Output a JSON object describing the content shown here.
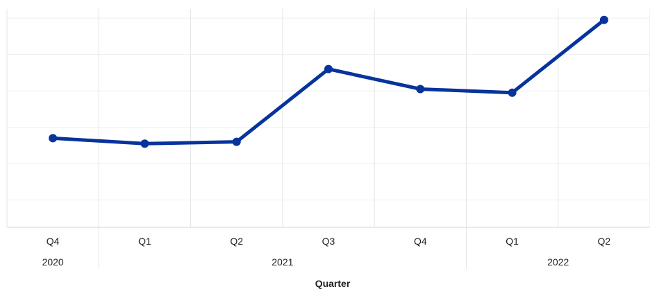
{
  "chart_data": {
    "type": "line",
    "title": "",
    "xlabel": "Quarter",
    "ylabel": "",
    "categories": [
      "Q4",
      "Q1",
      "Q2",
      "Q3",
      "Q4",
      "Q1",
      "Q2"
    ],
    "year_groups": [
      {
        "label": "2020",
        "start": 0,
        "end": 0
      },
      {
        "label": "2021",
        "start": 1,
        "end": 4
      },
      {
        "label": "2022",
        "start": 5,
        "end": 6
      }
    ],
    "series": [
      {
        "values": [
          1.7,
          1.55,
          1.6,
          3.6,
          3.05,
          2.95,
          4.95
        ],
        "color": "#06339C"
      }
    ],
    "ylim": [
      -0.75,
      5.25
    ],
    "y_gridlines": [
      0,
      1,
      2,
      3,
      4,
      5,
      6
    ],
    "grid": true,
    "legend": "none"
  }
}
